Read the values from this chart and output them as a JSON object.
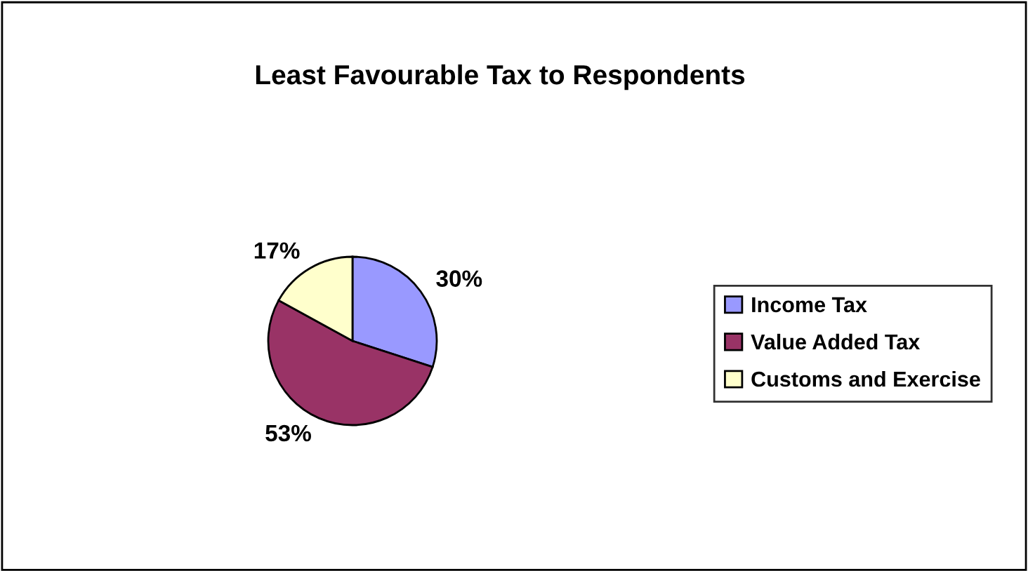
{
  "chart_data": {
    "type": "pie",
    "title": "Least Favourable Tax to Respondents",
    "categories": [
      "Income Tax",
      "Value Added Tax",
      "Customs and Exercise"
    ],
    "values": [
      30,
      53,
      17
    ],
    "colors": [
      "#9999ff",
      "#993366",
      "#ffffcc"
    ],
    "value_labels": [
      "30%",
      "53%",
      "17%"
    ],
    "legend": "right"
  }
}
